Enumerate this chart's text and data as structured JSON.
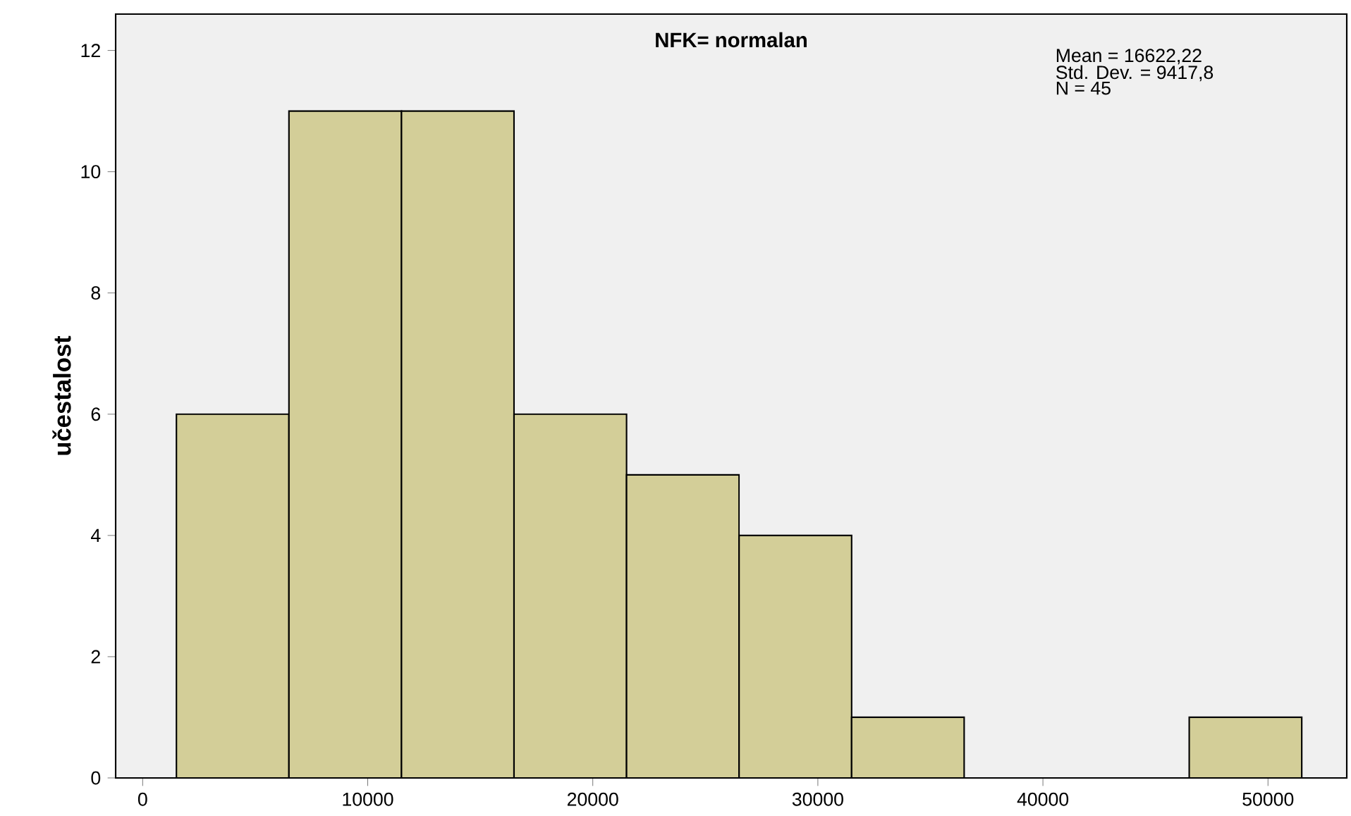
{
  "chart_data": {
    "type": "histogram",
    "title": "NFK= normalan",
    "ylabel": "učestalost",
    "annotations": [
      "Mean = 16622,22",
      "Std. Dev. = 9417,8",
      "N = 45"
    ],
    "bins": [
      1500,
      6500,
      11500,
      16500,
      21500,
      26500,
      31500,
      36500,
      41500,
      46500,
      51500
    ],
    "values": [
      6,
      11,
      11,
      6,
      5,
      4,
      1,
      0,
      0,
      1
    ],
    "color": "#d3ce98",
    "xlim": [
      -1200,
      53500
    ],
    "ylim": [
      0,
      12.6
    ],
    "xticks": [
      0,
      10000,
      20000,
      30000,
      40000,
      50000
    ],
    "yticks": [
      0,
      2,
      4,
      6,
      8,
      10,
      12
    ],
    "grid": false
  }
}
